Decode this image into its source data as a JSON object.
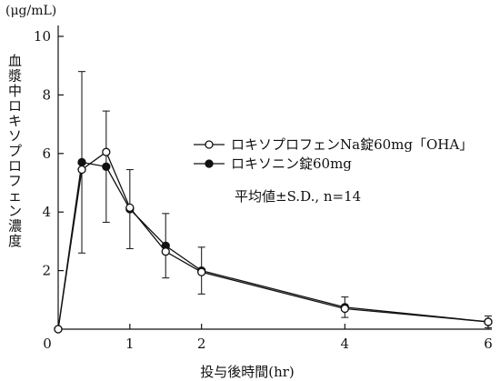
{
  "chart_data": {
    "type": "line",
    "ylabel_unit": "(μg/mL)",
    "ylabel": "血漿中ロキソプロフェン濃度",
    "xlabel": "投与後時間(hr)",
    "xlim": [
      0,
      6
    ],
    "ylim": [
      0,
      10
    ],
    "xticks": [
      0,
      1,
      2,
      4,
      6
    ],
    "yticks": [
      2,
      4,
      6,
      8,
      10
    ],
    "grid": false,
    "legend_position": "middle-right",
    "annotation": "平均値±S.D., n=14",
    "x": [
      0,
      0.33,
      0.67,
      1,
      1.5,
      2,
      4,
      6
    ],
    "series": [
      {
        "name": "ロキソプロフェンNa錠60mg「OHA」",
        "marker": "open-circle",
        "color": "#111111",
        "values": [
          0,
          5.45,
          6.05,
          4.15,
          2.65,
          1.95,
          0.7,
          0.25
        ],
        "sd": [
          0,
          0,
          0,
          0,
          0,
          0,
          0,
          0
        ]
      },
      {
        "name": "ロキソニン錠60mg",
        "marker": "filled-circle",
        "color": "#111111",
        "values": [
          0,
          5.7,
          5.55,
          4.1,
          2.85,
          2.0,
          0.75,
          0.25
        ],
        "sd": [
          0,
          3.1,
          1.9,
          1.35,
          1.1,
          0.8,
          0.35,
          0.2
        ]
      }
    ]
  }
}
